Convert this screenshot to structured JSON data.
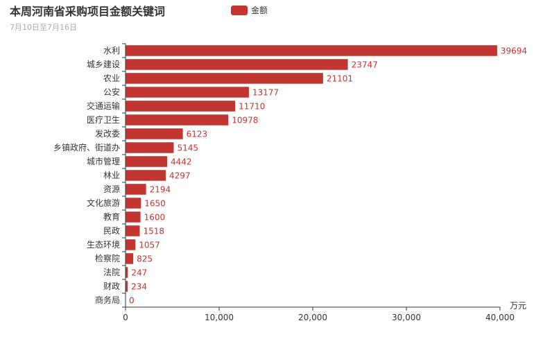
{
  "header": {
    "title": "本周河南省采购项目金额关键词",
    "subtitle": "7月10日至7月16日"
  },
  "legend": {
    "label": "金额",
    "color": "#c23531"
  },
  "chart_data": {
    "type": "bar",
    "orientation": "horizontal",
    "categories": [
      "水利",
      "城乡建设",
      "农业",
      "公安",
      "交通运输",
      "医疗卫生",
      "发改委",
      "乡镇政府、街道办",
      "城市管理",
      "林业",
      "资源",
      "文化旅游",
      "教育",
      "民政",
      "生态环境",
      "检察院",
      "法院",
      "财政",
      "商务局"
    ],
    "series": [
      {
        "name": "金额",
        "values": [
          39694,
          23747,
          21101,
          13177,
          11710,
          10978,
          6123,
          5145,
          4442,
          4297,
          2194,
          1650,
          1600,
          1518,
          1057,
          825,
          247,
          234,
          0
        ]
      }
    ],
    "xlim": [
      0,
      40000
    ],
    "xticks": [
      0,
      10000,
      20000,
      30000,
      40000
    ],
    "xtick_labels": [
      "0",
      "10,000",
      "20,000",
      "30,000",
      "40,000"
    ],
    "xlabel": "万元",
    "ylabel": "",
    "grid": false,
    "legend_position": "top",
    "bar_color": "#c23531",
    "data_labels": true
  }
}
